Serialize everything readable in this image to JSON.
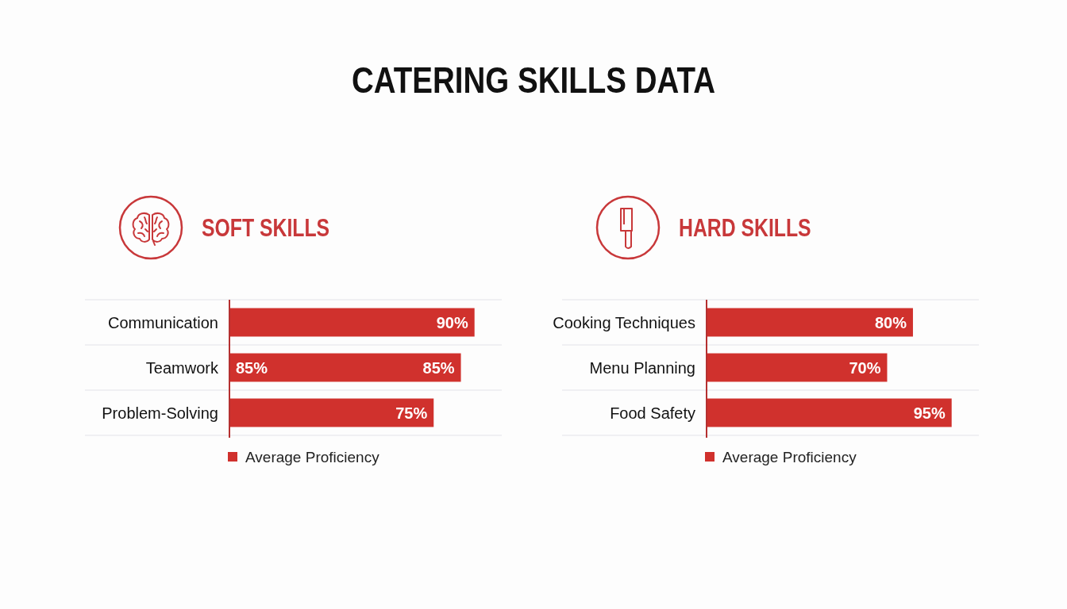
{
  "chart_data": [
    {
      "type": "other",
      "title": "CATERING SKILLS DATA"
    },
    {
      "type": "bar",
      "orientation": "horizontal",
      "title": "SOFT SKILLS",
      "categories": [
        "Communication",
        "Teamwork",
        "Problem-Solving"
      ],
      "series": [
        {
          "name": "Average Proficiency",
          "color": "#d0312d",
          "values": [
            90,
            85,
            75
          ],
          "value_labels": [
            "90%",
            "85%",
            "75%"
          ]
        }
      ],
      "annotations": [
        {
          "text": "85%",
          "x": 0,
          "y": "Teamwork"
        }
      ],
      "grid": "y",
      "legend": "bottom"
    },
    {
      "type": "bar",
      "orientation": "horizontal",
      "title": "HARD SKILLS",
      "categories": [
        "Cooking Techniques",
        "Menu Planning",
        "Food Safety"
      ],
      "series": [
        {
          "name": "Average Proficiency",
          "color": "#d0312d",
          "values": [
            80,
            70,
            95
          ],
          "value_labels": [
            "80%",
            "70%",
            "95%"
          ]
        }
      ],
      "grid": "y",
      "legend": "bottom"
    }
  ]
}
